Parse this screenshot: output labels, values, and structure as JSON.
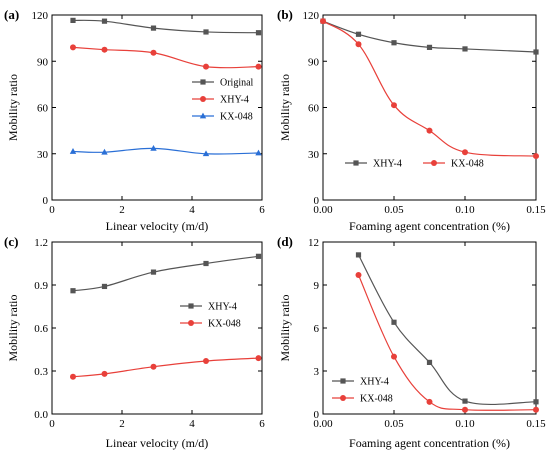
{
  "chart_data": [
    {
      "type": "line",
      "panel_label": "(a)",
      "xlabel": "Linear velocity (m/d)",
      "ylabel": "Mobility ratio",
      "xlim": [
        0,
        6
      ],
      "ylim": [
        0,
        120
      ],
      "xticks": [
        0,
        2,
        4,
        6
      ],
      "yticks": [
        0,
        30,
        60,
        90,
        120
      ],
      "xtick_labels": [
        "0",
        "2",
        "4",
        "6"
      ],
      "ytick_labels": [
        "0",
        "30",
        "60",
        "90",
        "120"
      ],
      "legend_position": "center-right",
      "series": [
        {
          "name": "Original",
          "color": "#555555",
          "marker": "square",
          "x": [
            0.6,
            1.5,
            2.9,
            4.4,
            5.9
          ],
          "y": [
            116.5,
            116,
            111.5,
            109,
            108.5
          ]
        },
        {
          "name": "XHY-4",
          "color": "#e8403a",
          "marker": "circle",
          "x": [
            0.6,
            1.5,
            2.9,
            4.4,
            5.9
          ],
          "y": [
            99,
            97.5,
            95.5,
            86.5,
            86.5
          ]
        },
        {
          "name": "KX-048",
          "color": "#2a6fd6",
          "marker": "triangle",
          "x": [
            0.6,
            1.5,
            2.9,
            4.4,
            5.9
          ],
          "y": [
            31.5,
            31,
            33.5,
            30,
            30.5
          ]
        }
      ]
    },
    {
      "type": "line",
      "panel_label": "(b)",
      "xlabel": "Foaming agent concentration (%)",
      "ylabel": "Mobility ratio",
      "xlim": [
        0,
        0.15
      ],
      "ylim": [
        0,
        120
      ],
      "xticks": [
        0,
        0.05,
        0.1,
        0.15
      ],
      "yticks": [
        0,
        30,
        60,
        90,
        120
      ],
      "xtick_labels": [
        "0.00",
        "0.05",
        "0.10",
        "0.15"
      ],
      "ytick_labels": [
        "0",
        "30",
        "60",
        "90",
        "120"
      ],
      "legend_position": "bottom-left",
      "series": [
        {
          "name": "XHY-4",
          "color": "#555555",
          "marker": "square",
          "x": [
            0,
            0.025,
            0.05,
            0.075,
            0.1,
            0.15
          ],
          "y": [
            116,
            107.5,
            102,
            99,
            98,
            96
          ]
        },
        {
          "name": "KX-048",
          "color": "#e8403a",
          "marker": "circle",
          "x": [
            0,
            0.025,
            0.05,
            0.075,
            0.1,
            0.15
          ],
          "y": [
            116,
            101,
            61.5,
            45,
            31,
            28.5
          ]
        }
      ]
    },
    {
      "type": "line",
      "panel_label": "(c)",
      "xlabel": "Linear velocity (m/d)",
      "ylabel": "Mobility ratio",
      "xlim": [
        0,
        6
      ],
      "ylim": [
        0,
        1.2
      ],
      "xticks": [
        0,
        2,
        4,
        6
      ],
      "yticks": [
        0,
        0.3,
        0.6,
        0.9,
        1.2
      ],
      "xtick_labels": [
        "0",
        "2",
        "4",
        "6"
      ],
      "ytick_labels": [
        "0.0",
        "0.3",
        "0.6",
        "0.9",
        "1.2"
      ],
      "legend_position": "center-right",
      "series": [
        {
          "name": "XHY-4",
          "color": "#555555",
          "marker": "square",
          "x": [
            0.6,
            1.5,
            2.9,
            4.4,
            5.9
          ],
          "y": [
            0.86,
            0.89,
            0.99,
            1.05,
            1.1
          ]
        },
        {
          "name": "KX-048",
          "color": "#e8403a",
          "marker": "circle",
          "x": [
            0.6,
            1.5,
            2.9,
            4.4,
            5.9
          ],
          "y": [
            0.26,
            0.28,
            0.33,
            0.37,
            0.39
          ]
        }
      ]
    },
    {
      "type": "line",
      "panel_label": "(d)",
      "xlabel": "Foaming agent concentration (%)",
      "ylabel": "Mobility ratio",
      "xlim": [
        0,
        0.15
      ],
      "ylim": [
        0,
        12
      ],
      "xticks": [
        0,
        0.05,
        0.1,
        0.15
      ],
      "yticks": [
        0,
        3,
        6,
        9,
        12
      ],
      "xtick_labels": [
        "0.00",
        "0.05",
        "0.10",
        "0.15"
      ],
      "ytick_labels": [
        "0",
        "3",
        "6",
        "9",
        "12"
      ],
      "legend_position": "bottom-left",
      "series": [
        {
          "name": "XHY-4",
          "color": "#555555",
          "marker": "square",
          "x": [
            0.025,
            0.05,
            0.075,
            0.1,
            0.15
          ],
          "y": [
            11.1,
            6.4,
            3.6,
            0.9,
            0.85
          ]
        },
        {
          "name": "KX-048",
          "color": "#e8403a",
          "marker": "circle",
          "x": [
            0.025,
            0.05,
            0.075,
            0.1,
            0.15
          ],
          "y": [
            9.7,
            4.0,
            0.85,
            0.3,
            0.3
          ]
        }
      ]
    }
  ]
}
